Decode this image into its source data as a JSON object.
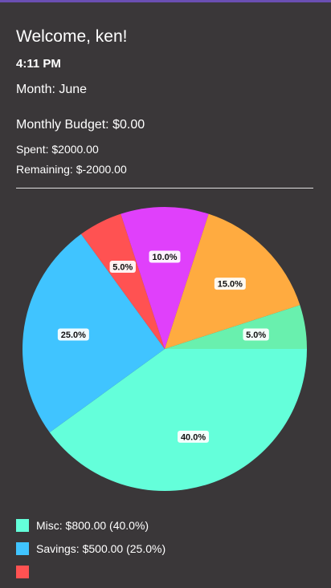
{
  "header": {
    "welcome": "Welcome, ken!",
    "time": "4:11 PM",
    "month": "Month: June"
  },
  "budget": {
    "monthly": "Monthly Budget: $0.00",
    "spent": "Spent: $2000.00",
    "remaining": "Remaining: $-2000.00"
  },
  "chart_data": {
    "type": "pie",
    "slices": [
      {
        "category": "Misc",
        "amount": 800,
        "percent": 40.0,
        "label": "40.0%",
        "color": "#64FFDA"
      },
      {
        "category": "Savings",
        "amount": 500,
        "percent": 25.0,
        "label": "25.0%",
        "color": "#40C4FF"
      },
      {
        "category": "",
        "amount": 100,
        "percent": 5.0,
        "label": "5.0%",
        "color": "#FF5252"
      },
      {
        "category": "",
        "amount": 200,
        "percent": 10.0,
        "label": "10.0%",
        "color": "#E040FB"
      },
      {
        "category": "",
        "amount": 300,
        "percent": 15.0,
        "label": "15.0%",
        "color": "#FFAB40"
      },
      {
        "category": "",
        "amount": 100,
        "percent": 5.0,
        "label": "5.0%",
        "color": "#69F0AE"
      }
    ]
  },
  "legend": [
    {
      "label": "Misc: $800.00 (40.0%)",
      "color": "#64FFDA"
    },
    {
      "label": "Savings: $500.00 (25.0%)",
      "color": "#40C4FF"
    },
    {
      "label": "",
      "color": "#FF5252"
    }
  ]
}
